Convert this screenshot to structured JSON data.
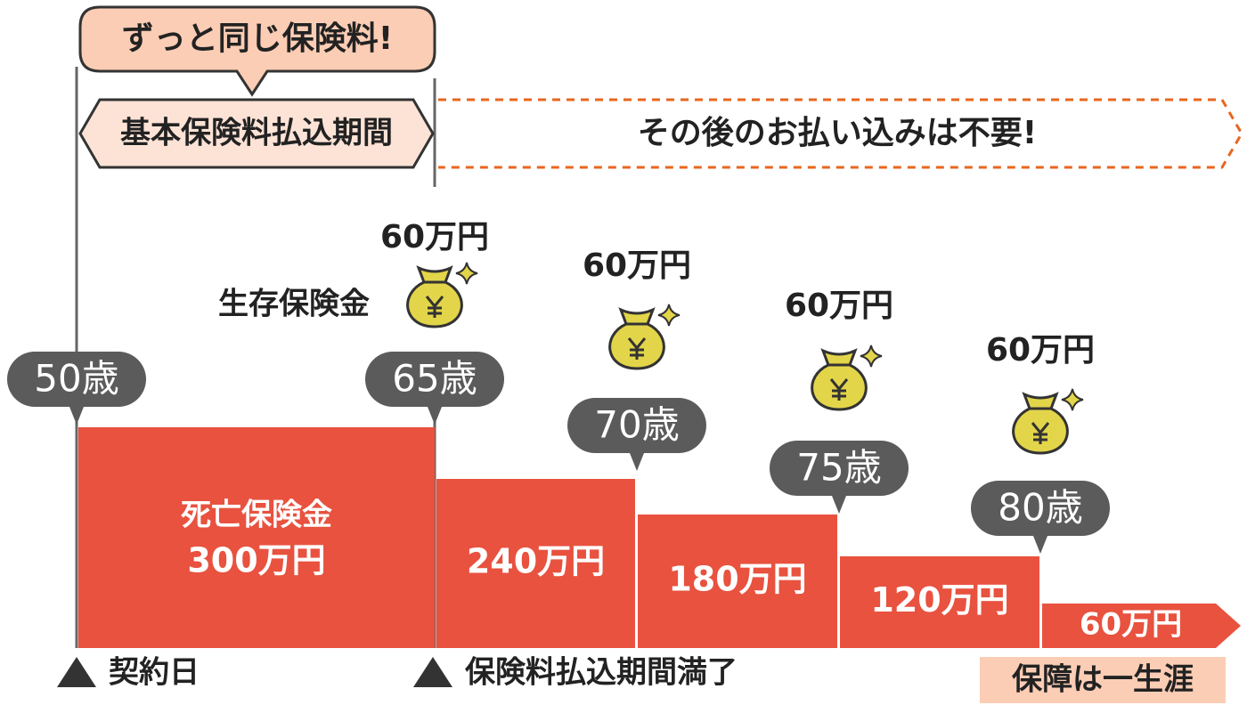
{
  "callout": "ずっと同じ保険料!",
  "payment_period": "基本保険料払込期間",
  "after_period": "その後のお払い込みは不要!",
  "survival_benefit": {
    "label": "生存保険金",
    "amounts": [
      "60万円",
      "60万円",
      "60万円",
      "60万円"
    ]
  },
  "ages": [
    "50歳",
    "65歳",
    "70歳",
    "75歳",
    "80歳"
  ],
  "death_benefit": {
    "label": "死亡保険金",
    "amounts": [
      "300万円",
      "240万円",
      "180万円",
      "120万円",
      "60万円"
    ]
  },
  "milestones": [
    "契約日",
    "保険料払込期間満了"
  ],
  "coverage": "保障は一生涯"
}
